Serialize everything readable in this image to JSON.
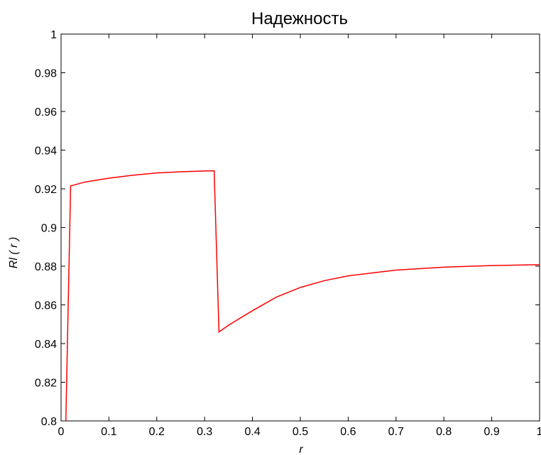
{
  "chart_data": {
    "type": "line",
    "title": "Надежность",
    "xlabel": "r",
    "ylabel": "Rl ( r )",
    "xlim": [
      0,
      1
    ],
    "ylim": [
      0.8,
      1
    ],
    "x_ticks": [
      "0",
      "0.1",
      "0.2",
      "0.3",
      "0.4",
      "0.5",
      "0.6",
      "0.7",
      "0.8",
      "0.9",
      "1"
    ],
    "y_ticks": [
      "0.8",
      "0.82",
      "0.84",
      "0.86",
      "0.88",
      "0.9",
      "0.92",
      "0.94",
      "0.96",
      "0.98",
      "1"
    ],
    "grid": false,
    "series": [
      {
        "color": "#ff0000",
        "x": [
          0.01,
          0.01,
          0.02,
          0.05,
          0.1,
          0.15,
          0.2,
          0.25,
          0.3,
          0.32,
          0.32,
          0.33,
          0.35,
          0.4,
          0.45,
          0.5,
          0.55,
          0.6,
          0.7,
          0.8,
          0.9,
          1.0
        ],
        "y": [
          0.8,
          0.7998,
          0.9215,
          0.9235,
          0.9255,
          0.927,
          0.9282,
          0.9288,
          0.9292,
          0.9293,
          0.929,
          0.846,
          0.8495,
          0.857,
          0.864,
          0.869,
          0.8725,
          0.875,
          0.878,
          0.8795,
          0.8803,
          0.8808
        ]
      }
    ]
  }
}
